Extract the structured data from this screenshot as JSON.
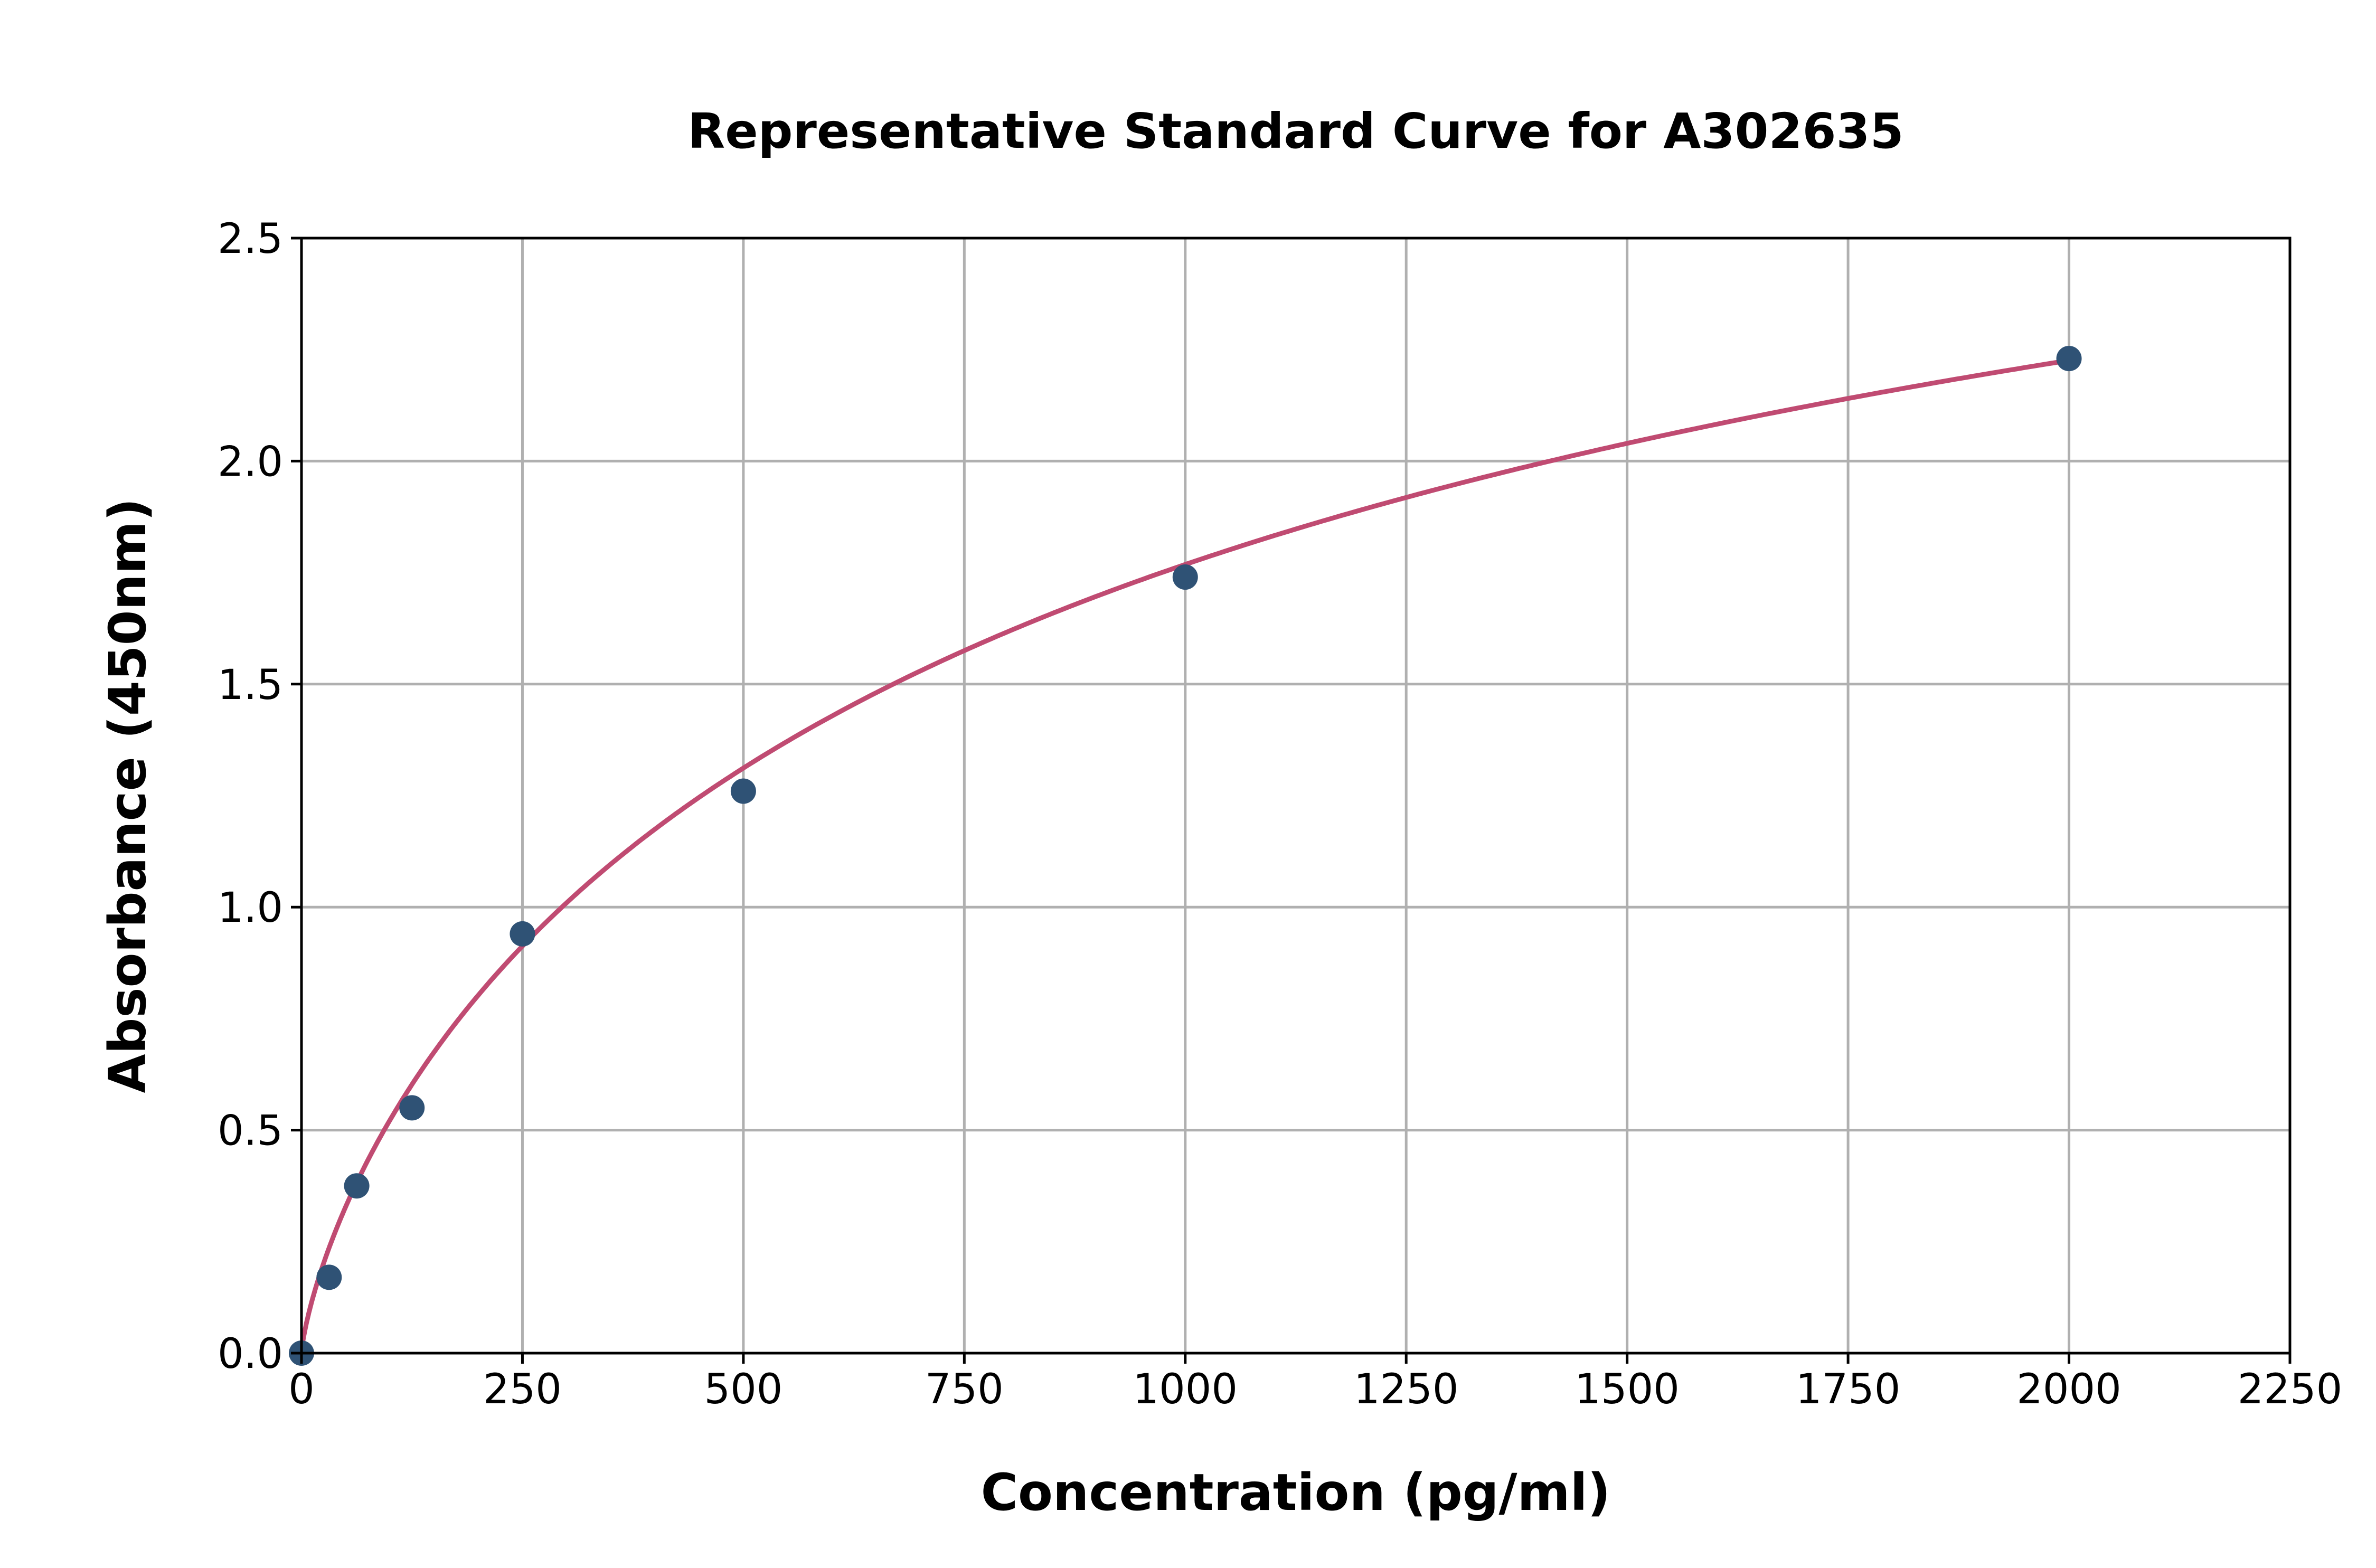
{
  "chart_data": {
    "type": "scatter",
    "title": "Representative Standard Curve for A302635",
    "xlabel": "Concentration (pg/ml)",
    "ylabel": "Absorbance (450nm)",
    "xlim": [
      0,
      2250
    ],
    "ylim": [
      0,
      2.5
    ],
    "xticks": [
      "0",
      "250",
      "500",
      "750",
      "1000",
      "1250",
      "1500",
      "1750",
      "2000",
      "2250"
    ],
    "yticks": [
      "0.0",
      "0.5",
      "1.0",
      "1.5",
      "2.0",
      "2.5"
    ],
    "grid": true,
    "points": {
      "x": [
        0,
        31.25,
        62.5,
        125,
        250,
        500,
        1000,
        2000
      ],
      "y": [
        0.0,
        0.17,
        0.375,
        0.55,
        0.94,
        1.26,
        1.74,
        2.23
      ]
    },
    "fit_curve": {
      "type": "four-parameter logistic"
    },
    "colors": {
      "points": "#2f5275",
      "curve": "#c04b72"
    }
  }
}
